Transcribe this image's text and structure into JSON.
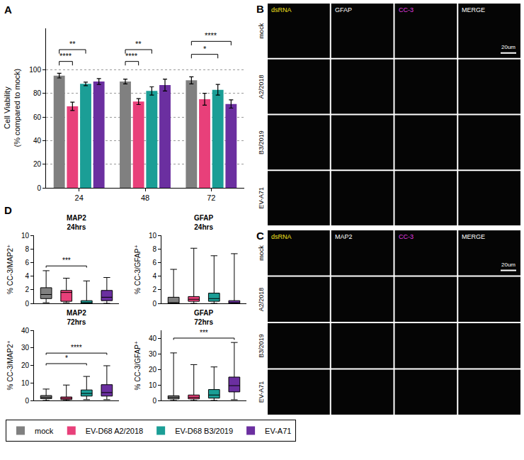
{
  "chart_data": [
    {
      "type": "bar",
      "categories": [
        "24",
        "48",
        "72"
      ],
      "y_label": "Cell Viability\n(% compared to mock)",
      "ylim": [
        0,
        135
      ],
      "yticks": [
        0,
        20,
        40,
        60,
        80,
        100
      ],
      "grid": true,
      "legend": "bottom",
      "series": [
        {
          "name": "mock",
          "color": "#808080",
          "values": [
            95,
            90,
            91
          ],
          "errors": [
            2,
            2,
            3
          ]
        },
        {
          "name": "EV-D68 A2/2018",
          "color": "#e8407a",
          "values": [
            69,
            73,
            75
          ],
          "errors": [
            3.5,
            2.5,
            5
          ]
        },
        {
          "name": "EV-D68 B3/2019",
          "color": "#1b9e96",
          "values": [
            88,
            82,
            83
          ],
          "errors": [
            1.5,
            3.5,
            4.5
          ]
        },
        {
          "name": "EV-A71",
          "color": "#6b2fa0",
          "values": [
            90,
            87,
            71
          ],
          "errors": [
            2.5,
            5,
            3.5
          ]
        }
      ],
      "significance": [
        {
          "category": "24",
          "from": "mock",
          "to": "EV-D68 A2/2018",
          "y": 107,
          "label": "****"
        },
        {
          "category": "24",
          "from": "mock",
          "to": "EV-D68 B3/2019",
          "y": 117,
          "label": "**"
        },
        {
          "category": "48",
          "from": "mock",
          "to": "EV-D68 A2/2018",
          "y": 107,
          "label": "****"
        },
        {
          "category": "48",
          "from": "mock",
          "to": "EV-D68 B3/2019",
          "y": 117,
          "label": "**"
        },
        {
          "category": "72",
          "from": "mock",
          "to": "EV-D68 B3/2019",
          "y": 113,
          "label": "*"
        },
        {
          "category": "72",
          "from": "mock",
          "to": "EV-A71",
          "y": 124,
          "label": "****"
        }
      ]
    },
    {
      "type": "box",
      "title": "MAP2",
      "subtitle": "24hrs",
      "y_label": "% CC-3/MAP2⁺",
      "ylim": [
        0,
        10
      ],
      "yticks": [
        0,
        2,
        4,
        6,
        8,
        10
      ],
      "tick_labels": "y",
      "series": [
        {
          "name": "mock",
          "color": "#808080",
          "min": 0.1,
          "q1": 0.7,
          "median": 1.3,
          "q3": 2.3,
          "max": 4.8
        },
        {
          "name": "EV-D68 A2/2018",
          "color": "#e8407a",
          "min": 0.1,
          "q1": 0.3,
          "median": 1.6,
          "q3": 1.9,
          "max": 3.7
        },
        {
          "name": "EV-D68 B3/2019",
          "color": "#1b9e96",
          "min": 0,
          "q1": 0,
          "median": 0,
          "q3": 0.4,
          "max": 3.3
        },
        {
          "name": "EV-A71",
          "color": "#6b2fa0",
          "min": 0,
          "q1": 0.4,
          "median": 0.9,
          "q3": 1.9,
          "max": 3.8
        }
      ],
      "significance": [
        {
          "from": "mock",
          "to": "EV-D68 B3/2019",
          "y": 5.5,
          "label": "***"
        }
      ]
    },
    {
      "type": "box",
      "title": "GFAP",
      "subtitle": "24hrs",
      "y_label": "% CC-3/GFAP⁺",
      "ylim": [
        0,
        10
      ],
      "yticks": [
        0,
        2,
        4,
        6,
        8,
        10
      ],
      "tick_labels": "y",
      "series": [
        {
          "name": "mock",
          "color": "#808080",
          "min": 0,
          "q1": 0,
          "median": 0,
          "q3": 0.9,
          "max": 5.0
        },
        {
          "name": "EV-D68 A2/2018",
          "color": "#e8407a",
          "min": 0,
          "q1": 0.3,
          "median": 0.6,
          "q3": 1.0,
          "max": 8.1
        },
        {
          "name": "EV-D68 B3/2019",
          "color": "#1b9e96",
          "min": 0,
          "q1": 0.3,
          "median": 0.7,
          "q3": 1.5,
          "max": 7.0
        },
        {
          "name": "EV-A71",
          "color": "#6b2fa0",
          "min": 0,
          "q1": 0,
          "median": 0,
          "q3": 0.4,
          "max": 7.3
        }
      ],
      "significance": []
    },
    {
      "type": "box",
      "title": "MAP2",
      "subtitle": "72hrs",
      "y_label": "% CC-3/MAP2⁺",
      "ylim": [
        0,
        40
      ],
      "yticks": [
        0,
        10,
        20,
        30,
        40
      ],
      "tick_labels": "y",
      "series": [
        {
          "name": "mock",
          "color": "#808080",
          "min": 0,
          "q1": 1,
          "median": 1.8,
          "q3": 2.8,
          "max": 6.5
        },
        {
          "name": "EV-D68 A2/2018",
          "color": "#e8407a",
          "min": 0,
          "q1": 0.5,
          "median": 1.2,
          "q3": 2.0,
          "max": 8.8
        },
        {
          "name": "EV-D68 B3/2019",
          "color": "#1b9e96",
          "min": 0.5,
          "q1": 2.5,
          "median": 4,
          "q3": 6,
          "max": 13.7
        },
        {
          "name": "EV-A71",
          "color": "#6b2fa0",
          "min": 0.5,
          "q1": 2.5,
          "median": 4.5,
          "q3": 9,
          "max": 19.8
        }
      ],
      "significance": [
        {
          "from": "mock",
          "to": "EV-D68 B3/2019",
          "y": 21,
          "label": "*"
        },
        {
          "from": "mock",
          "to": "EV-A71",
          "y": 27,
          "label": "****"
        }
      ]
    },
    {
      "type": "box",
      "title": "GFAP",
      "subtitle": "72hrs",
      "y_label": "% CC-3/GFAP⁺",
      "ylim": [
        0,
        45
      ],
      "yticks": [
        0,
        10,
        20,
        30,
        40
      ],
      "tick_labels": "y",
      "series": [
        {
          "name": "mock",
          "color": "#808080",
          "min": 0,
          "q1": 1,
          "median": 2,
          "q3": 3,
          "max": 30.5
        },
        {
          "name": "EV-D68 A2/2018",
          "color": "#e8407a",
          "min": 0,
          "q1": 1,
          "median": 2,
          "q3": 3.5,
          "max": 23
        },
        {
          "name": "EV-D68 B3/2019",
          "color": "#1b9e96",
          "min": 0,
          "q1": 1.5,
          "median": 3.5,
          "q3": 7,
          "max": 21.5
        },
        {
          "name": "EV-A71",
          "color": "#6b2fa0",
          "min": 0.5,
          "q1": 5.5,
          "median": 9.5,
          "q3": 15,
          "max": 37.2
        }
      ],
      "significance": [
        {
          "from": "mock",
          "to": "EV-A71",
          "y": 40,
          "label": "***"
        }
      ]
    }
  ],
  "panel_labels": [
    "A",
    "B",
    "C",
    "D"
  ],
  "micrographs": [
    {
      "channels": [
        {
          "name": "dsRNA",
          "color": "#f2e21f"
        },
        {
          "name": "GFAP",
          "color": "#ffffff"
        },
        {
          "name": "CC-3",
          "color": "#e23be2"
        },
        {
          "name": "MERGE",
          "color": "#ffffff"
        }
      ],
      "rows": [
        "mock",
        "A2/2018",
        "B3/2019",
        "EV-A71"
      ],
      "scale_bar": "20um"
    },
    {
      "channels": [
        {
          "name": "dsRNA",
          "color": "#f2e21f"
        },
        {
          "name": "MAP2",
          "color": "#ffffff"
        },
        {
          "name": "CC-3",
          "color": "#e23be2"
        },
        {
          "name": "MERGE",
          "color": "#ffffff"
        }
      ],
      "rows": [
        "mock",
        "A2/2018",
        "B3/2019",
        "EV-A71"
      ],
      "scale_bar": "20um"
    }
  ]
}
